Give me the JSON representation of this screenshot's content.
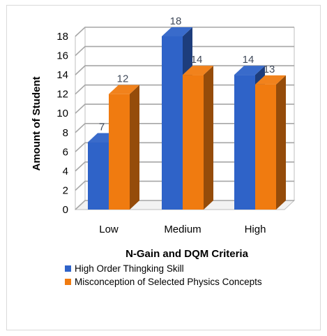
{
  "chart_data": {
    "type": "bar",
    "categories": [
      "Low",
      "Medium",
      "High"
    ],
    "series": [
      {
        "name": "High Order Thingking Skill",
        "values": [
          7,
          18,
          14
        ],
        "color": "#2f63c8"
      },
      {
        "name": "Misconception of Selected Physics Concepts",
        "values": [
          12,
          14,
          13
        ],
        "color": "#f07b10"
      }
    ],
    "xlabel": "N-Gain and DQM Criteria",
    "ylabel": "Amount of Student",
    "ylim": [
      0,
      18
    ],
    "yticks": [
      0,
      2,
      4,
      6,
      8,
      10,
      12,
      14,
      16,
      18
    ],
    "grid": true,
    "style": "3d-clustered-column",
    "legend_position": "bottom-left"
  }
}
